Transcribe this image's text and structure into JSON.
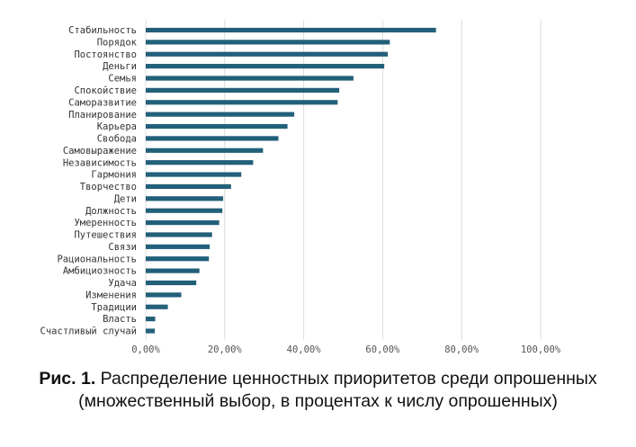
{
  "chart_data": {
    "type": "bar",
    "orientation": "horizontal",
    "categories": [
      "Стабильность",
      "Порядок",
      "Постоянство",
      "Деньги",
      "Семья",
      "Спокойствие",
      "Саморазвитие",
      "Планирование",
      "Карьера",
      "Свобода",
      "Самовыражение",
      "Независимость",
      "Гармония",
      "Творчество",
      "Дети",
      "Должность",
      "Умеренность",
      "Путешествия",
      "Связи",
      "Рациональность",
      "Амбициозность",
      "Удача",
      "Изменения",
      "Традиции",
      "Власть",
      "Счастливый случай"
    ],
    "values": [
      73.5,
      61.8,
      61.3,
      60.4,
      52.6,
      49.0,
      48.6,
      37.6,
      35.9,
      33.6,
      29.7,
      27.2,
      24.2,
      21.6,
      19.6,
      19.4,
      18.6,
      16.8,
      16.2,
      16.0,
      13.6,
      12.8,
      9.0,
      5.6,
      2.4,
      2.3
    ],
    "xlim": [
      0,
      100
    ],
    "x_ticks": [
      "0,00%",
      "20,00%",
      "40,00%",
      "60,00%",
      "80,00%",
      "100,00%"
    ],
    "grid": "vertical",
    "bar_color": "#22607a",
    "grid_color": "#dcdcdc"
  },
  "caption": {
    "figure_label": "Рис. 1.",
    "text": " Распределение ценностных приоритетов среди опрошенных (множественный выбор, в процентах к числу опрошенных)"
  }
}
